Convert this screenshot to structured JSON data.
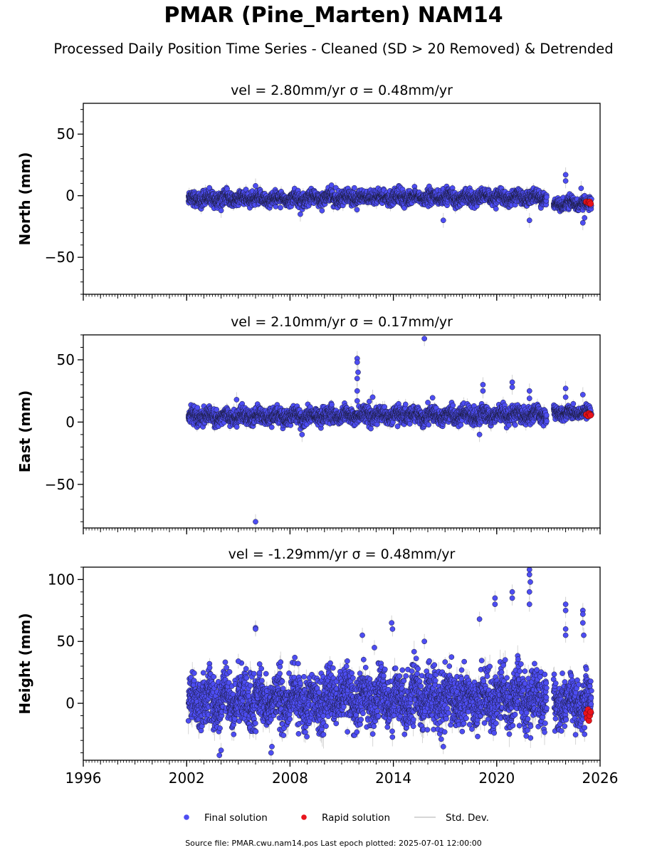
{
  "figure": {
    "title": "PMAR (Pine_Marten) NAM14",
    "subtitle": "Processed Daily Position Time Series - Cleaned (SD > 20 Removed) & Detrended",
    "source_line": "Source file: PMAR.cwu.nam14.pos  Last epoch plotted: 2025-07-01 12:00:00"
  },
  "legend": {
    "placement": "bottom-center",
    "entries": [
      {
        "label": "Final solution",
        "color": "#4d4df2"
      },
      {
        "label": "Rapid solution",
        "color": "#e8141c"
      },
      {
        "label": "Std. Dev.",
        "color": "#c8c8c8"
      }
    ]
  },
  "chart_data": [
    {
      "type": "scatter",
      "title": "vel = 2.80mm/yr   σ = 0.48mm/yr",
      "ylabel": "North (mm)",
      "xlim": [
        1996,
        2026
      ],
      "ylim": [
        -80,
        75
      ],
      "yticks": [
        -50,
        0,
        50
      ],
      "xticks": [
        1996,
        2002,
        2008,
        2014,
        2020,
        2026
      ],
      "x_tick_labels_shown": false,
      "grid": false,
      "series": [
        {
          "name": "Final solution",
          "color": "#4d4df2",
          "segments": [
            {
              "x_start": 2002.1,
              "x_end": 2009.6,
              "center": -2.5,
              "spread": 2.8,
              "drift": 0.0
            },
            {
              "x_start": 2009.6,
              "x_end": 2022.9,
              "center": -1.5,
              "spread": 2.8,
              "drift": 0.12
            },
            {
              "x_start": 2023.3,
              "x_end": 2025.5,
              "center": -6.5,
              "spread": 2.2,
              "drift": 0.4
            }
          ],
          "outliers": [
            [
              2004.0,
              -12
            ],
            [
              2006.0,
              8
            ],
            [
              2008.6,
              -15
            ],
            [
              2016.9,
              -20
            ],
            [
              2021.9,
              -20
            ],
            [
              2024.0,
              17
            ],
            [
              2024.0,
              12
            ],
            [
              2025.0,
              -22
            ],
            [
              2025.1,
              -18
            ],
            [
              2024.9,
              6
            ]
          ]
        },
        {
          "name": "Rapid solution",
          "color": "#e8141c",
          "points": [
            [
              2025.2,
              -5
            ],
            [
              2025.3,
              -5.5
            ],
            [
              2025.35,
              -6
            ],
            [
              2025.4,
              -5
            ],
            [
              2025.45,
              -6.5
            ]
          ]
        }
      ]
    },
    {
      "type": "scatter",
      "title": "vel = 2.10mm/yr   σ = 0.17mm/yr",
      "ylabel": "East (mm)",
      "xlim": [
        1996,
        2026
      ],
      "ylim": [
        -85,
        70
      ],
      "yticks": [
        -50,
        0,
        50
      ],
      "xticks": [
        1996,
        2002,
        2008,
        2014,
        2020,
        2026
      ],
      "x_tick_labels_shown": false,
      "grid": false,
      "series": [
        {
          "name": "Final solution",
          "color": "#4d4df2",
          "segments": [
            {
              "x_start": 2002.1,
              "x_end": 2009.6,
              "center": 4.5,
              "spread": 3.0,
              "drift": 0.0
            },
            {
              "x_start": 2009.6,
              "x_end": 2022.9,
              "center": 5.5,
              "spread": 3.2,
              "drift": 0.0
            },
            {
              "x_start": 2023.3,
              "x_end": 2025.5,
              "center": 7.5,
              "spread": 2.5,
              "drift": 0.0
            }
          ],
          "outliers": [
            [
              2006.0,
              -80
            ],
            [
              2011.9,
              51
            ],
            [
              2011.9,
              48
            ],
            [
              2011.95,
              40
            ],
            [
              2011.9,
              35
            ],
            [
              2011.9,
              25
            ],
            [
              2011.9,
              17
            ],
            [
              2015.8,
              67
            ],
            [
              2008.7,
              -10
            ],
            [
              2019.2,
              30
            ],
            [
              2019.2,
              25
            ],
            [
              2020.9,
              32
            ],
            [
              2020.9,
              28
            ],
            [
              2021.9,
              25
            ],
            [
              2021.9,
              19
            ],
            [
              2019.0,
              -10
            ],
            [
              2024.0,
              27
            ],
            [
              2024.0,
              20
            ],
            [
              2025.0,
              22
            ],
            [
              2012.8,
              20
            ],
            [
              2004.9,
              18
            ]
          ]
        },
        {
          "name": "Rapid solution",
          "color": "#e8141c",
          "points": [
            [
              2025.2,
              6
            ],
            [
              2025.3,
              5
            ],
            [
              2025.35,
              7
            ],
            [
              2025.4,
              6
            ],
            [
              2025.45,
              5.5
            ]
          ]
        }
      ]
    },
    {
      "type": "scatter",
      "title": "vel = -1.29mm/yr   σ = 0.48mm/yr",
      "ylabel": "Height (mm)",
      "xlim": [
        1996,
        2026
      ],
      "ylim": [
        -46,
        110
      ],
      "yticks": [
        0,
        50,
        100
      ],
      "xticks": [
        1996,
        2002,
        2008,
        2014,
        2020,
        2026
      ],
      "x_tick_labels_shown": true,
      "grid": false,
      "series": [
        {
          "name": "Final solution",
          "color": "#4d4df2",
          "segments": [
            {
              "x_start": 2002.1,
              "x_end": 2009.6,
              "center": 2.0,
              "spread": 10.0,
              "drift": 0.0
            },
            {
              "x_start": 2009.6,
              "x_end": 2022.9,
              "center": 4.0,
              "spread": 10.5,
              "drift": 0.0
            },
            {
              "x_start": 2023.3,
              "x_end": 2025.5,
              "center": 1.0,
              "spread": 9.0,
              "drift": 0.0
            }
          ],
          "outliers": [
            [
              2006.0,
              61
            ],
            [
              2006.0,
              60
            ],
            [
              2003.9,
              -42
            ],
            [
              2004.0,
              -38
            ],
            [
              2005.0,
              34
            ],
            [
              2006.9,
              -40
            ],
            [
              2006.95,
              -35
            ],
            [
              2013.9,
              65
            ],
            [
              2013.95,
              60
            ],
            [
              2015.8,
              50
            ],
            [
              2019.0,
              68
            ],
            [
              2019.9,
              85
            ],
            [
              2019.9,
              80
            ],
            [
              2020.9,
              90
            ],
            [
              2020.9,
              85
            ],
            [
              2021.9,
              108
            ],
            [
              2021.9,
              104
            ],
            [
              2021.95,
              98
            ],
            [
              2021.9,
              90
            ],
            [
              2021.9,
              80
            ],
            [
              2024.0,
              80
            ],
            [
              2024.0,
              75
            ],
            [
              2024.0,
              60
            ],
            [
              2024.0,
              55
            ],
            [
              2025.0,
              75
            ],
            [
              2025.0,
              72
            ],
            [
              2025.0,
              65
            ],
            [
              2025.05,
              55
            ],
            [
              2012.2,
              55
            ],
            [
              2016.9,
              -35
            ],
            [
              2012.9,
              45
            ],
            [
              2025.1,
              -25
            ]
          ]
        },
        {
          "name": "Rapid solution",
          "color": "#e8141c",
          "points": [
            [
              2025.2,
              -8
            ],
            [
              2025.25,
              -12
            ],
            [
              2025.3,
              -5
            ],
            [
              2025.35,
              -14
            ],
            [
              2025.4,
              -10
            ],
            [
              2025.45,
              -7
            ]
          ]
        }
      ]
    }
  ]
}
